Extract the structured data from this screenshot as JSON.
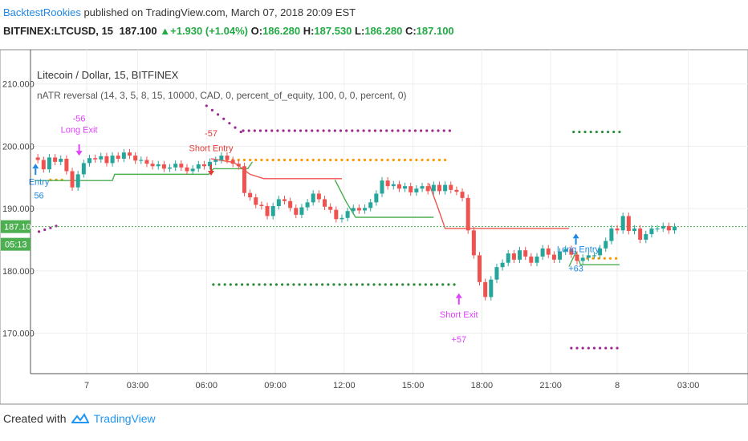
{
  "header": {
    "author": "BacktestRookies",
    "published_text": "published on TradingView.com, March 07, 2018 20:09 EST"
  },
  "quote": {
    "symbol": "BITFINEX:LTCUSD, 15",
    "price": "187.100",
    "arrow": "▲",
    "change": "+1.930 (+1.04%)",
    "o_label": "O:",
    "o_value": "186.280",
    "h_label": "H:",
    "h_value": "187.530",
    "l_label": "L:",
    "l_value": "186.280",
    "c_label": "C:",
    "c_value": "187.100"
  },
  "legend": {
    "series_title": "Litecoin / Dollar, 15, BITFINEX",
    "indicator": "nATR reversal (14, 3, 5, 8, 15, 10000, CAD, 0, percent_of_equity, 100, 0, 0, percent, 0)"
  },
  "price_badge": {
    "price": "187.100",
    "countdown": "05:13"
  },
  "footer": {
    "created_with": "Created with",
    "brand": "TradingView"
  },
  "colors": {
    "up": "#26a69a",
    "down": "#ef5350",
    "stop_green": "#4caf50",
    "stop_red": "#ef5350",
    "purple": "#9c2a8f",
    "orange": "#ff9800",
    "green_dots": "#2e8b3a",
    "long_signal": "#e040fb",
    "short_signal": "#e53935",
    "entry_blue": "#1e88e5",
    "accent": "#2196f3"
  },
  "chart_data": {
    "type": "candlestick",
    "y_ticks": [
      "210.000",
      "200.000",
      "190.000",
      "180.000",
      "170.000"
    ],
    "y_tick_values": [
      210,
      200,
      190,
      180,
      170
    ],
    "ylim": [
      163.5,
      215.5
    ],
    "x_ticks": [
      {
        "t": 1.78,
        "label": "7"
      },
      {
        "t": 4.0,
        "label": "03:00"
      },
      {
        "t": 7.0,
        "label": "06:00"
      },
      {
        "t": 10.0,
        "label": "09:00"
      },
      {
        "t": 13.0,
        "label": "12:00"
      },
      {
        "t": 16.0,
        "label": "15:00"
      },
      {
        "t": 19.0,
        "label": "18:00"
      },
      {
        "t": 22.0,
        "label": "21:00"
      },
      {
        "t": 24.9,
        "label": "8"
      },
      {
        "t": 28.0,
        "label": "03:00"
      }
    ],
    "xlim": [
      -0.6,
      30.6
    ],
    "last_price": 187.1,
    "candles_close": [
      197.8,
      196.3,
      198.2,
      197.5,
      198.0,
      196.0,
      193.4,
      195.5,
      197.3,
      198.1,
      197.9,
      198.4,
      197.3,
      198.5,
      198.0,
      199.0,
      198.5,
      197.7,
      197.8,
      197.2,
      196.8,
      197.1,
      196.4,
      196.6,
      197.2,
      196.6,
      196.0,
      196.4,
      197.1,
      196.8,
      197.5,
      197.8,
      198.5,
      197.8,
      197.2,
      196.8,
      192.5,
      191.8,
      190.6,
      190.4,
      188.8,
      190.4,
      191.5,
      191.2,
      190.1,
      189.0,
      190.2,
      191.0,
      192.4,
      191.5,
      190.3,
      189.8,
      188.3,
      188.5,
      189.6,
      190.1,
      189.7,
      190.1,
      191.0,
      192.4,
      194.5,
      193.6,
      193.9,
      193.2,
      193.6,
      192.6,
      193.2,
      193.6,
      192.8,
      193.8,
      192.8,
      193.8,
      193.0,
      192.7,
      191.7,
      186.5,
      182.5,
      178.2,
      175.8,
      178.6,
      180.6,
      181.3,
      182.8,
      181.8,
      183.3,
      182.3,
      181.3,
      182.3,
      183.6,
      182.6,
      181.8,
      183.1,
      183.5,
      182.6,
      181.6,
      182.1,
      182.5,
      182.5,
      183.6,
      184.8,
      186.8,
      186.5,
      188.8,
      186.4,
      186.8,
      185.0,
      185.9,
      186.8,
      186.8,
      187.2,
      186.5,
      187.1
    ],
    "series": [
      {
        "name": "stop-green-1",
        "points": [
          [
            -0.5,
            194.5
          ],
          [
            2.9,
            194.5
          ],
          [
            3.0,
            195.5
          ],
          [
            7.1,
            195.5
          ],
          [
            7.3,
            196.4
          ],
          [
            8.8,
            196.4
          ],
          [
            9.0,
            197.5
          ]
        ]
      },
      {
        "name": "stop-red-1",
        "points": [
          [
            7.2,
            198.0
          ],
          [
            8.2,
            197.4
          ],
          [
            8.9,
            195.5
          ],
          [
            9.5,
            194.8
          ],
          [
            12.9,
            194.8
          ]
        ]
      },
      {
        "name": "stop-green-2",
        "points": [
          [
            12.6,
            194.6
          ],
          [
            13.1,
            191.0
          ],
          [
            13.5,
            188.6
          ],
          [
            16.9,
            188.6
          ]
        ]
      },
      {
        "name": "stop-red-2",
        "points": [
          [
            16.7,
            194.0
          ],
          [
            17.1,
            190.0
          ],
          [
            17.4,
            186.8
          ],
          [
            22.8,
            186.8
          ]
        ]
      },
      {
        "name": "stop-green-3",
        "points": [
          [
            22.8,
            180.7
          ],
          [
            23.1,
            183.0
          ],
          [
            23.3,
            181.0
          ],
          [
            25.0,
            181.0
          ]
        ]
      }
    ],
    "signals": [
      {
        "label": "-56",
        "t": 1.45,
        "price": 204.0,
        "color": "long"
      },
      {
        "label": "Long Exit",
        "t": 1.45,
        "price": 202.2,
        "color": "long"
      },
      {
        "label": "-57",
        "t": 7.2,
        "price": 201.6,
        "color": "short"
      },
      {
        "label": "Short Entry",
        "t": 7.2,
        "price": 199.2,
        "color": "short"
      },
      {
        "label": "Entry",
        "t": -0.3,
        "price": 193.8,
        "color": "entry"
      },
      {
        "label": "56",
        "t": -0.3,
        "price": 191.6,
        "color": "entry"
      },
      {
        "label": "Short Exit",
        "t": 18.0,
        "price": 172.5,
        "color": "long"
      },
      {
        "label": "+57",
        "t": 18.0,
        "price": 168.5,
        "color": "long"
      },
      {
        "label": "Long Entry",
        "t": 23.2,
        "price": 183.0,
        "color": "entry"
      },
      {
        "label": "+63",
        "t": 23.1,
        "price": 179.9,
        "color": "entry"
      }
    ]
  }
}
